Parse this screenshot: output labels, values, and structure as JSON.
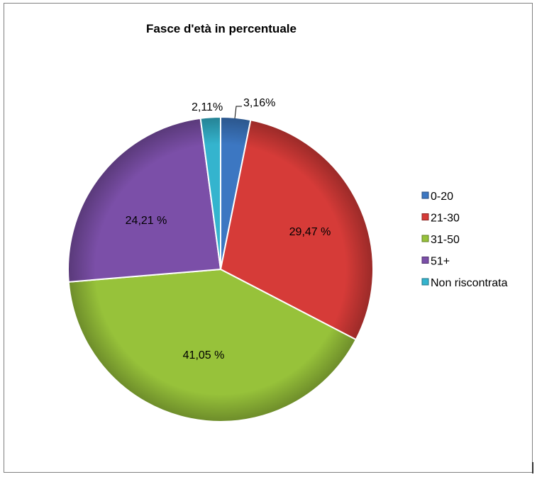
{
  "chart_data": {
    "type": "pie",
    "title": "Fasce d'età in percentuale",
    "categories": [
      "0-20",
      "21-30",
      "31-50",
      "51+",
      "Non riscontrata"
    ],
    "values": [
      3.16,
      29.47,
      41.05,
      24.21,
      2.11
    ],
    "data_labels": [
      "3,16%",
      "29,47 %",
      "41,05 %",
      "24,21 %",
      "2,11%"
    ],
    "colors": [
      "#3C77C2",
      "#D63B38",
      "#97C23A",
      "#7B4FA8",
      "#34B4CE"
    ],
    "legend_position": "right",
    "start_angle": "top, clockwise",
    "style": "3d-shaded"
  }
}
